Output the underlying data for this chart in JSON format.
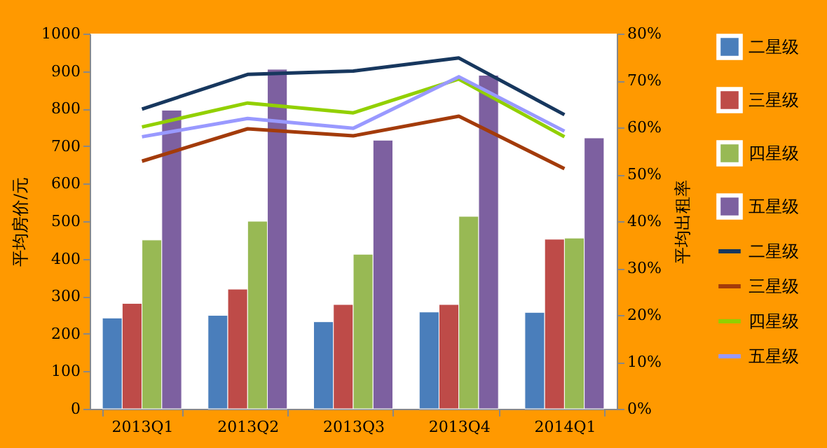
{
  "chart_data": {
    "type": "bar",
    "xlabel": null,
    "ylabel": "平均房价/元",
    "y2label": "平均出租率",
    "categories": [
      "2013Q1",
      "2013Q2",
      "2013Q3",
      "2013Q4",
      "2014Q1"
    ],
    "series": [
      {
        "name": "二星级",
        "color": "#4a7ebb",
        "values": [
          242,
          249,
          232,
          258,
          257
        ]
      },
      {
        "name": "三星级",
        "color": "#be4b48",
        "values": [
          281,
          319,
          278,
          278,
          452
        ]
      },
      {
        "name": "四星级",
        "color": "#98b954",
        "values": [
          450,
          500,
          412,
          513,
          455
        ]
      },
      {
        "name": "五星级",
        "color": "#7d60a0",
        "values": [
          796,
          905,
          716,
          889,
          722
        ]
      },
      {
        "name": "二星级",
        "type": "line",
        "axis": "y2",
        "color": "#17375e",
        "values": [
          63.9,
          71.3,
          72.0,
          74.8,
          62.7
        ]
      },
      {
        "name": "三星级",
        "type": "line",
        "axis": "y2",
        "color": "#a33b0a",
        "values": [
          52.8,
          59.7,
          58.2,
          62.4,
          51.2
        ]
      },
      {
        "name": "四星级",
        "type": "line",
        "axis": "y2",
        "color": "#92d000",
        "values": [
          60.1,
          65.2,
          63.1,
          70.3,
          58.0
        ]
      },
      {
        "name": "五星级",
        "type": "line",
        "axis": "y2",
        "color": "#9999ff",
        "values": [
          58.0,
          61.9,
          59.8,
          70.8,
          59.2
        ]
      }
    ],
    "ylim": [
      0,
      1000
    ],
    "yticks": [
      0,
      100,
      200,
      300,
      400,
      500,
      600,
      700,
      800,
      900,
      1000
    ],
    "y2lim": [
      0,
      80
    ],
    "y2ticks": [
      {
        "value": 0,
        "label": "0%"
      },
      {
        "value": 10,
        "label": "10%"
      },
      {
        "value": 20,
        "label": "20%"
      },
      {
        "value": 30,
        "label": "30%"
      },
      {
        "value": 40,
        "label": "40%"
      },
      {
        "value": 50,
        "label": "50%"
      },
      {
        "value": 60,
        "label": "60%"
      },
      {
        "value": 70,
        "label": "70%"
      },
      {
        "value": 80,
        "label": "80%"
      }
    ],
    "grid": false,
    "legend": "right",
    "marker": "none",
    "line_style": "solid"
  }
}
